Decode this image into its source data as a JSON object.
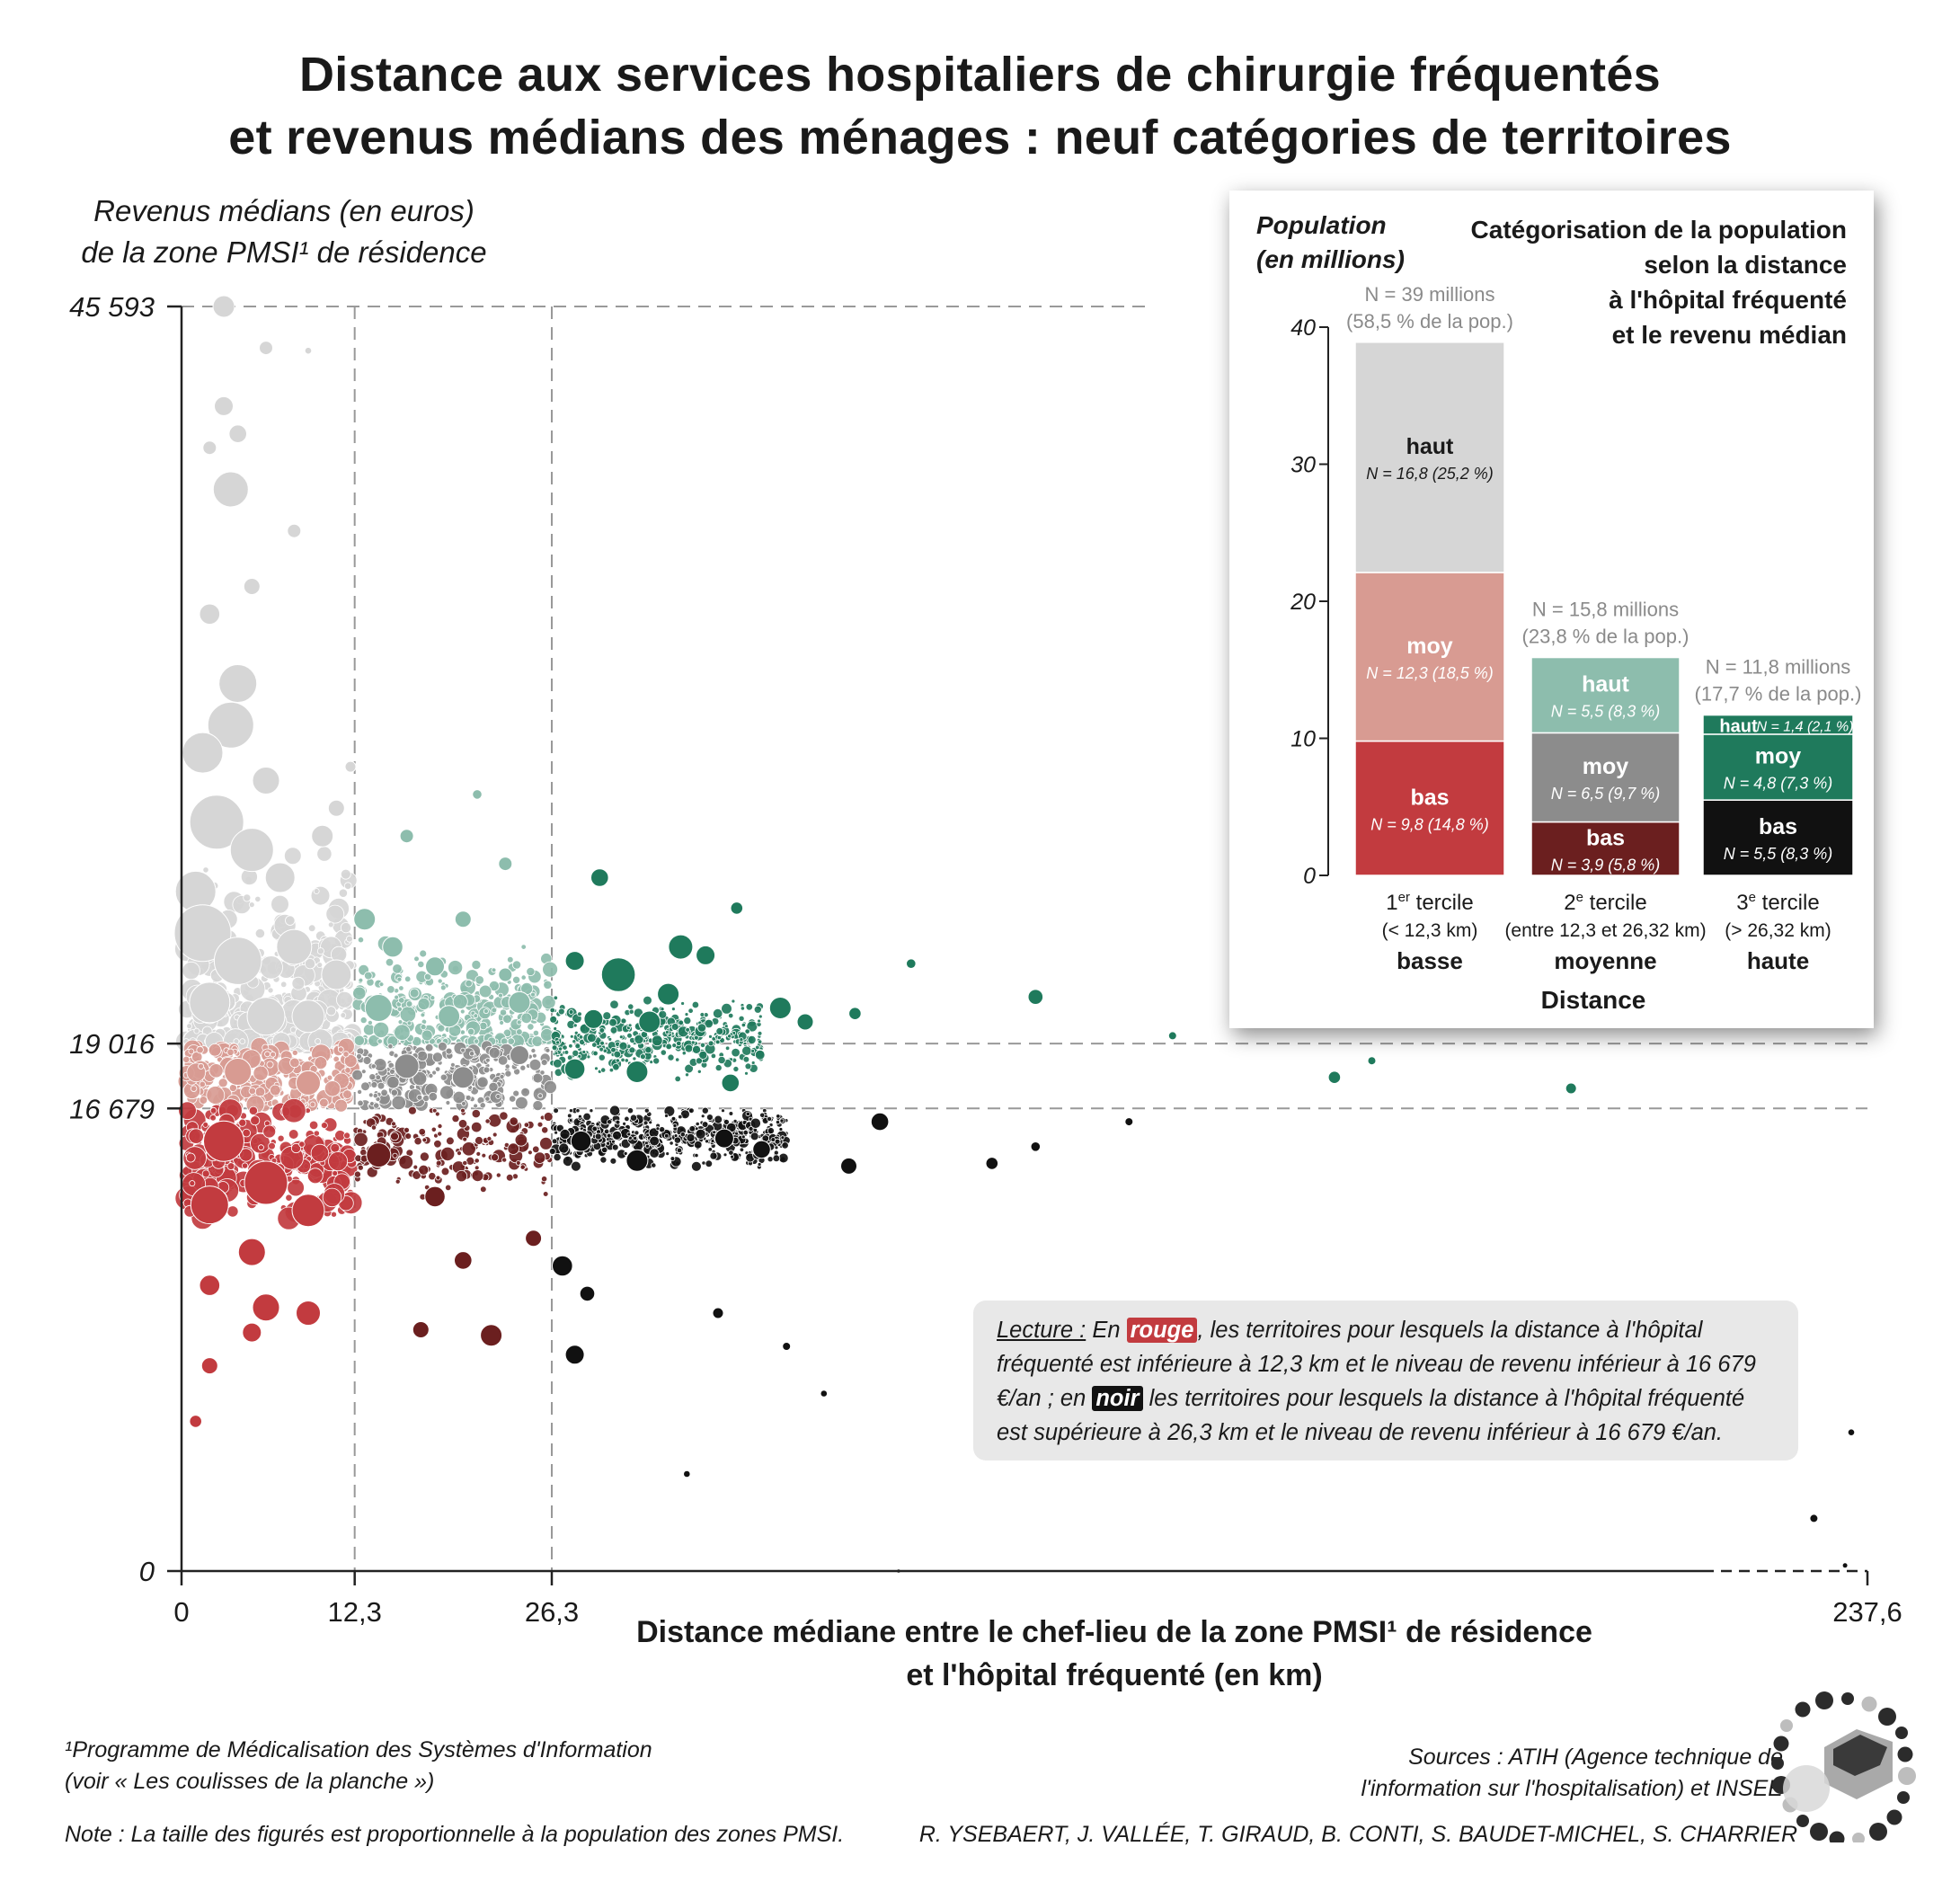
{
  "title_line1": "Distance aux services hospitaliers de chirurgie fréquentés",
  "title_line2": "et revenus médians des ménages : neuf catégories de territoires",
  "y_label_line1": "Revenus médians (en euros)",
  "y_label_line2": "de la zone PMSI¹ de résidence",
  "x_label_line1": "Distance médiane entre le chef-lieu de la zone PMSI¹ de résidence",
  "x_label_line2": "et l'hôpital fréquenté (en km)",
  "chart_data": [
    {
      "type": "scatter",
      "xlim": [
        0,
        237.6
      ],
      "ylim": [
        0,
        45593
      ],
      "x_ticks": [
        0,
        12.3,
        26.3,
        237.6
      ],
      "x_tick_labels": [
        "0",
        "12,3",
        "26,3",
        "237,6"
      ],
      "y_ticks": [
        0,
        16679,
        19016,
        45593
      ],
      "y_tick_labels": [
        "0",
        "16 679",
        "19 016",
        "45 593"
      ],
      "x_thresholds": [
        12.3,
        26.3
      ],
      "y_thresholds": [
        16679,
        19016
      ],
      "x_axis_break_after": 26.3,
      "category_colors": {
        "basse-haut": "#d6d6d6",
        "basse-moy": "#d89b92",
        "basse-bas": "#c23b3f",
        "moyenne-haut": "#8dbdad",
        "moyenne-moy": "#8c8c8c",
        "moyenne-bas": "#6b1f1f",
        "haute-haut": "#1f7a5c",
        "haute-moy": "#1f7a5c",
        "haute-bas": "#111111"
      },
      "points": [
        {
          "x": 3,
          "y": 45593,
          "size": 1.6
        },
        {
          "x": 6,
          "y": 44100,
          "size": 1.0
        },
        {
          "x": 9,
          "y": 44000,
          "size": 0.5
        },
        {
          "x": 3,
          "y": 42000,
          "size": 1.4
        },
        {
          "x": 4,
          "y": 41000,
          "size": 1.3
        },
        {
          "x": 3.5,
          "y": 39000,
          "size": 2.6
        },
        {
          "x": 2,
          "y": 40500,
          "size": 1.0
        },
        {
          "x": 8,
          "y": 37500,
          "size": 1.0
        },
        {
          "x": 5,
          "y": 35500,
          "size": 1.2
        },
        {
          "x": 2,
          "y": 34500,
          "size": 1.5
        },
        {
          "x": 4,
          "y": 32000,
          "size": 2.8
        },
        {
          "x": 3.5,
          "y": 30500,
          "size": 3.4
        },
        {
          "x": 1.5,
          "y": 29500,
          "size": 3.0
        },
        {
          "x": 6,
          "y": 28500,
          "size": 2.0
        },
        {
          "x": 2.5,
          "y": 27000,
          "size": 4.0
        },
        {
          "x": 5,
          "y": 26000,
          "size": 3.2
        },
        {
          "x": 1,
          "y": 24500,
          "size": 3.0
        },
        {
          "x": 7,
          "y": 25000,
          "size": 2.2
        },
        {
          "x": 10,
          "y": 26500,
          "size": 1.6
        },
        {
          "x": 11,
          "y": 27500,
          "size": 1.2
        },
        {
          "x": 1.5,
          "y": 23000,
          "size": 4.2
        },
        {
          "x": 4,
          "y": 22000,
          "size": 3.5
        },
        {
          "x": 8,
          "y": 22500,
          "size": 2.6
        },
        {
          "x": 11,
          "y": 21500,
          "size": 2.2
        },
        {
          "x": 2,
          "y": 20500,
          "size": 3.0
        },
        {
          "x": 6,
          "y": 20000,
          "size": 2.8
        },
        {
          "x": 9,
          "y": 20000,
          "size": 2.4
        },
        {
          "x": 13,
          "y": 23500,
          "size": 1.6
        },
        {
          "x": 15,
          "y": 22500,
          "size": 1.5
        },
        {
          "x": 18,
          "y": 21800,
          "size": 1.4
        },
        {
          "x": 20,
          "y": 23500,
          "size": 1.2
        },
        {
          "x": 23,
          "y": 21500,
          "size": 1.0
        },
        {
          "x": 24,
          "y": 20500,
          "size": 1.6
        },
        {
          "x": 14,
          "y": 20300,
          "size": 2.0
        },
        {
          "x": 19,
          "y": 20000,
          "size": 1.6
        },
        {
          "x": 16,
          "y": 26500,
          "size": 1.0
        },
        {
          "x": 21,
          "y": 28000,
          "size": 0.7
        },
        {
          "x": 12,
          "y": 29000,
          "size": 0.8
        },
        {
          "x": 23,
          "y": 25500,
          "size": 1.0
        },
        {
          "x": 30,
          "y": 22000,
          "size": 1.4
        },
        {
          "x": 34,
          "y": 25000,
          "size": 1.3
        },
        {
          "x": 37,
          "y": 21500,
          "size": 2.5
        },
        {
          "x": 42,
          "y": 19800,
          "size": 1.6
        },
        {
          "x": 47,
          "y": 22500,
          "size": 1.8
        },
        {
          "x": 51,
          "y": 22200,
          "size": 1.4
        },
        {
          "x": 56,
          "y": 23900,
          "size": 0.9
        },
        {
          "x": 63,
          "y": 20300,
          "size": 1.6
        },
        {
          "x": 67,
          "y": 19800,
          "size": 1.2
        },
        {
          "x": 45,
          "y": 20800,
          "size": 1.6
        },
        {
          "x": 33,
          "y": 19900,
          "size": 1.4
        },
        {
          "x": 75,
          "y": 20100,
          "size": 0.9
        },
        {
          "x": 84,
          "y": 21900,
          "size": 0.7
        },
        {
          "x": 104,
          "y": 20700,
          "size": 1.1
        },
        {
          "x": 126,
          "y": 19300,
          "size": 0.6
        },
        {
          "x": 158,
          "y": 18400,
          "size": 0.6
        },
        {
          "x": 152,
          "y": 17800,
          "size": 0.9
        },
        {
          "x": 190,
          "y": 17400,
          "size": 0.8
        },
        {
          "x": 4,
          "y": 18000,
          "size": 2.0
        },
        {
          "x": 9,
          "y": 17600,
          "size": 1.8
        },
        {
          "x": 16,
          "y": 18200,
          "size": 1.8
        },
        {
          "x": 20,
          "y": 17800,
          "size": 1.6
        },
        {
          "x": 24,
          "y": 18600,
          "size": 1.4
        },
        {
          "x": 30,
          "y": 18100,
          "size": 1.5
        },
        {
          "x": 40,
          "y": 18000,
          "size": 1.6
        },
        {
          "x": 55,
          "y": 17600,
          "size": 1.3
        },
        {
          "x": 3,
          "y": 15500,
          "size": 3.0
        },
        {
          "x": 6,
          "y": 14000,
          "size": 3.2
        },
        {
          "x": 2,
          "y": 13200,
          "size": 2.8
        },
        {
          "x": 9,
          "y": 13000,
          "size": 2.4
        },
        {
          "x": 5,
          "y": 11500,
          "size": 2.0
        },
        {
          "x": 2,
          "y": 10300,
          "size": 1.5
        },
        {
          "x": 6,
          "y": 9500,
          "size": 2.0
        },
        {
          "x": 9,
          "y": 9300,
          "size": 1.8
        },
        {
          "x": 5,
          "y": 8600,
          "size": 1.4
        },
        {
          "x": 2,
          "y": 7400,
          "size": 1.2
        },
        {
          "x": 1,
          "y": 5400,
          "size": 0.9
        },
        {
          "x": 14,
          "y": 15000,
          "size": 1.8
        },
        {
          "x": 18,
          "y": 13500,
          "size": 1.5
        },
        {
          "x": 20,
          "y": 11200,
          "size": 1.3
        },
        {
          "x": 22,
          "y": 8500,
          "size": 1.6
        },
        {
          "x": 17,
          "y": 8700,
          "size": 1.2
        },
        {
          "x": 25,
          "y": 12000,
          "size": 1.2
        },
        {
          "x": 31,
          "y": 15500,
          "size": 1.5
        },
        {
          "x": 40,
          "y": 14800,
          "size": 1.6
        },
        {
          "x": 54,
          "y": 15600,
          "size": 1.4
        },
        {
          "x": 60,
          "y": 15200,
          "size": 1.3
        },
        {
          "x": 74,
          "y": 14600,
          "size": 1.2
        },
        {
          "x": 28,
          "y": 11000,
          "size": 1.5
        },
        {
          "x": 30,
          "y": 7800,
          "size": 1.4
        },
        {
          "x": 32,
          "y": 10000,
          "size": 1.1
        },
        {
          "x": 53,
          "y": 9300,
          "size": 0.8
        },
        {
          "x": 64,
          "y": 8100,
          "size": 0.6
        },
        {
          "x": 79,
          "y": 16200,
          "size": 1.3
        },
        {
          "x": 97,
          "y": 14700,
          "size": 0.9
        },
        {
          "x": 104,
          "y": 15300,
          "size": 0.7
        },
        {
          "x": 119,
          "y": 16200,
          "size": 0.6
        },
        {
          "x": 48,
          "y": 3500,
          "size": 0.5
        },
        {
          "x": 70,
          "y": 6400,
          "size": 0.5
        },
        {
          "x": 235,
          "y": 5000,
          "size": 0.5
        },
        {
          "x": 229,
          "y": 1900,
          "size": 0.6
        },
        {
          "x": 234,
          "y": 200,
          "size": 0.4
        },
        {
          "x": 82,
          "y": 0,
          "size": 0.3
        }
      ]
    },
    {
      "type": "bar",
      "title": "Catégorisation de la population selon la distance à l'hôpital fréquenté et le revenu médian",
      "ylabel": "Population (en millions)",
      "xlabel": "Distance",
      "ylim": [
        0,
        40
      ],
      "y_ticks": [
        0,
        10,
        20,
        30,
        40
      ],
      "categories": [
        {
          "line1": "1er tercile",
          "sup": "er",
          "base": "1",
          "word": "tercile",
          "line2": "(< 12,3 km)",
          "line3": "basse",
          "total_line1": "N = 39 millions",
          "total_line2": "(58,5 % de la pop.)"
        },
        {
          "line1": "2e tercile",
          "sup": "e",
          "base": "2",
          "word": "tercile",
          "line2": "(entre 12,3 et 26,32 km)",
          "line3": "moyenne",
          "total_line1": "N = 15,8 millions",
          "total_line2": "(23,8 % de la pop.)"
        },
        {
          "line1": "3e tercile",
          "sup": "e",
          "base": "3",
          "word": "tercile",
          "line2": "(> 26,32 km)",
          "line3": "haute",
          "total_line1": "N = 11,8 millions",
          "total_line2": "(17,7 % de la pop.)"
        }
      ],
      "series": [
        {
          "name": "bas",
          "values": [
            9.8,
            3.9,
            5.5
          ],
          "colors": [
            "#c23b3f",
            "#6b1f1f",
            "#111111"
          ],
          "labels": [
            "N = 9,8 (14,8 %)",
            "N = 3,9 (5,8 %)",
            "N = 5,5 (8,3 %)"
          ]
        },
        {
          "name": "moy",
          "values": [
            12.3,
            6.5,
            4.8
          ],
          "colors": [
            "#d89b92",
            "#8c8c8c",
            "#1f7a5c"
          ],
          "labels": [
            "N = 12,3 (18,5 %)",
            "N = 6,5 (9,7 %)",
            "N = 4,8 (7,3 %)"
          ]
        },
        {
          "name": "haut",
          "values": [
            16.8,
            5.5,
            1.4
          ],
          "colors": [
            "#d6d6d6",
            "#8dbdad",
            "#1f7a5c"
          ],
          "labels": [
            "N = 16,8 (25,2 %)",
            "N = 5,5 (8,3 %)",
            "N = 1,4 (2,1 %)"
          ]
        }
      ]
    }
  ],
  "inset": {
    "ylabel_line1": "Population",
    "ylabel_line2": "(en millions)",
    "title_line1": "Catégorisation de la population",
    "title_line2": "selon la distance",
    "title_line3": "à l'hôpital fréquenté",
    "title_line4": "et le revenu médian",
    "xlabel": "Distance"
  },
  "lecture": {
    "label": "Lecture :",
    "part1": " En ",
    "rouge": "rouge",
    "part2": ", les territoires pour lesquels la distance à l'hôpital fréquenté est inférieure à 12,3 km et le niveau de revenu inférieur à 16 679 €/an ; en ",
    "noir": "noir",
    "part3": " les territoires pour lesquels la distance à l'hôpital fréquenté est supérieure à 26,3 km et le niveau de revenu inférieur à 16 679 €/an.",
    "rouge_color": "#c23b3f",
    "noir_color": "#111111"
  },
  "footnote": {
    "line1": "¹Programme de Médicalisation des Systèmes d'Information",
    "line2": "(voir « Les coulisses de la planche »)",
    "note": "Note : La taille des figurés est proportionnelle à la population des zones PMSI."
  },
  "sources": {
    "line1": "Sources : ATIH (Agence technique de",
    "line2": "l'information sur l'hospitalisation) et INSEE",
    "authors": "R. YSEBAERT, J. VALLÉE, T. GIRAUD, B. CONTI, S. BAUDET-MICHEL, S. CHARRIER"
  },
  "logo_icon": "atlas-logo-icon"
}
